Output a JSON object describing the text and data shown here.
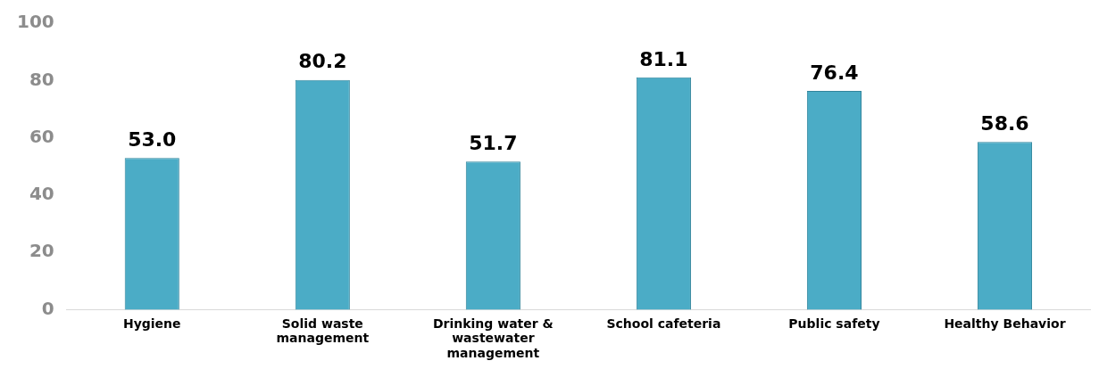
{
  "chart_data": {
    "type": "bar",
    "categories": [
      "Hygiene",
      "Solid waste management",
      "Drinking water & wastewater management",
      "School cafeteria",
      "Public safety",
      "Healthy Behavior"
    ],
    "values": [
      53.0,
      80.2,
      51.7,
      81.1,
      76.4,
      58.6
    ],
    "color": "#4bacc6",
    "ylim": [
      0,
      100
    ],
    "yticks": [
      0,
      20,
      40,
      60,
      80,
      100
    ],
    "value_labels": [
      "53.0",
      "80.2",
      "51.7",
      "81.1",
      "76.4",
      "58.6"
    ],
    "grid": false,
    "legend": false
  }
}
